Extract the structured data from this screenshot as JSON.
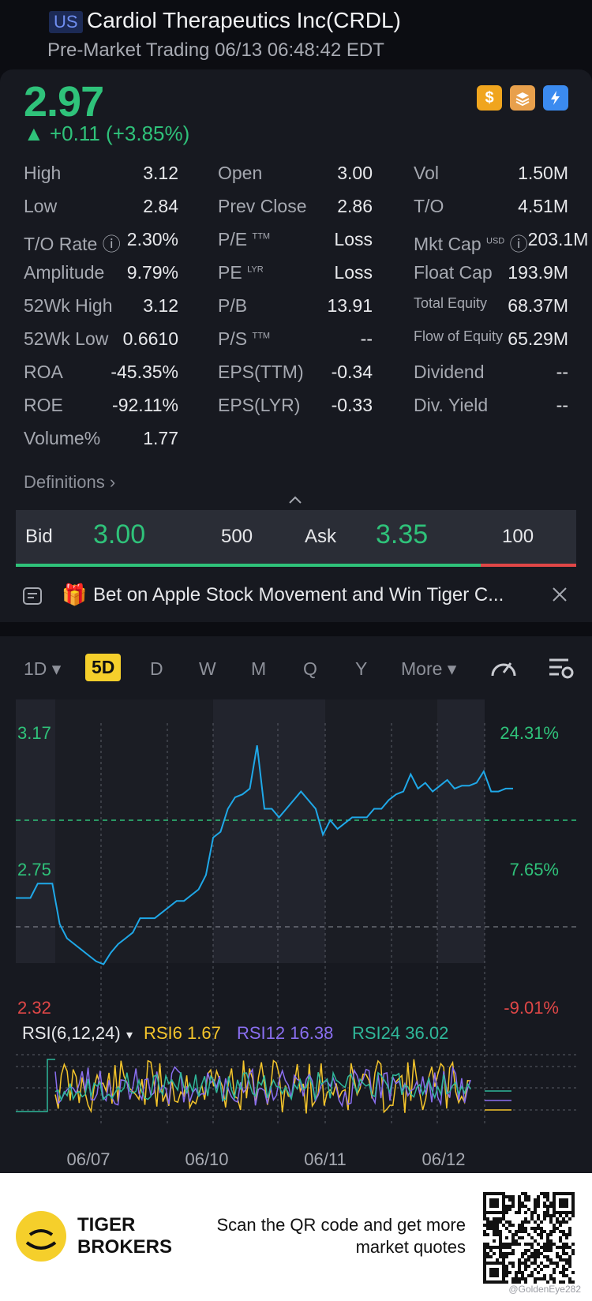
{
  "header": {
    "market_flag": "US",
    "title": "Cardiol Therapeutics Inc(CRDL)",
    "subtitle": "Pre-Market Trading 06/13 06:48:42 EDT"
  },
  "quote": {
    "price": "2.97",
    "change": "+0.11 (+3.85%)",
    "badges": [
      {
        "icon": "dollar-badge-icon",
        "glyph": "$",
        "color": "#f0a51e"
      },
      {
        "icon": "layers-badge-icon",
        "glyph": "≋",
        "color": "#e8a04c"
      },
      {
        "icon": "flash-badge-icon",
        "glyph": "⚡",
        "color": "#3b8bf0"
      }
    ]
  },
  "stats": {
    "rows": [
      [
        {
          "label": "High",
          "value": "3.12"
        },
        {
          "label": "Open",
          "value": "3.00"
        },
        {
          "label": "Vol",
          "value": "1.50M"
        }
      ],
      [
        {
          "label": "Low",
          "value": "2.84"
        },
        {
          "label": "Prev Close",
          "value": "2.86"
        },
        {
          "label": "T/O",
          "value": "4.51M"
        }
      ],
      [
        {
          "label": "T/O Rate",
          "value": "2.30%"
        },
        {
          "label": "P/E",
          "sup": "TTM",
          "value": "Loss"
        },
        {
          "label": "Mkt Cap",
          "sup": "USD",
          "value": "203.1M"
        }
      ],
      [
        {
          "label": "Amplitude",
          "value": "9.79%"
        },
        {
          "label": "PE",
          "sup": "LYR",
          "value": "Loss"
        },
        {
          "label": "Float Cap",
          "value": "193.9M"
        }
      ],
      [
        {
          "label": "52Wk High",
          "value": "3.12"
        },
        {
          "label": "P/B",
          "value": "13.91"
        },
        {
          "label": "Total Equity",
          "value": "68.37M"
        }
      ],
      [
        {
          "label": "52Wk Low",
          "value": "0.6610"
        },
        {
          "label": "P/S",
          "sup": "TTM",
          "value": "--"
        },
        {
          "label": "Flow of Equity",
          "value": "65.29M"
        }
      ],
      [
        {
          "label": "ROA",
          "value": "-45.35%"
        },
        {
          "label": "EPS(TTM)",
          "value": "-0.34"
        },
        {
          "label": "Dividend",
          "value": "--"
        }
      ],
      [
        {
          "label": "ROE",
          "value": "-92.11%"
        },
        {
          "label": "EPS(LYR)",
          "value": "-0.33"
        },
        {
          "label": "Div. Yield",
          "value": "--"
        }
      ],
      [
        {
          "label": "Volume%",
          "value": "1.77"
        }
      ]
    ],
    "definitions_label": "Definitions"
  },
  "bidask": {
    "bid_label": "Bid",
    "bid_price": "3.00",
    "bid_size": "500",
    "ask_label": "Ask",
    "ask_price": "3.35",
    "ask_size": "100",
    "bid_ratio": 0.83,
    "bid_color": "#2fc27a",
    "ask_color": "#e04747"
  },
  "promo": {
    "text": "Bet on Apple Stock Movement and Win Tiger C..."
  },
  "chart_controls": {
    "periods": [
      "1D",
      "5D",
      "D",
      "W",
      "M",
      "Q",
      "Y"
    ],
    "active_period": "5D",
    "more_label": "More"
  },
  "chart_data": {
    "type": "line",
    "y_left_labels": {
      "top": "3.17",
      "mid": "2.75",
      "bottom": "2.32"
    },
    "y_right_labels": {
      "top": "24.31%",
      "mid": "7.65%",
      "bottom": "-9.01%"
    },
    "ylim": [
      2.32,
      3.17
    ],
    "prev_close": 2.86,
    "x_labels": [
      "06/07",
      "06/10",
      "06/11",
      "06/12"
    ],
    "price_series": [
      2.59,
      2.59,
      2.59,
      2.64,
      2.64,
      2.64,
      2.5,
      2.45,
      2.43,
      2.41,
      2.39,
      2.37,
      2.36,
      2.4,
      2.43,
      2.45,
      2.47,
      2.52,
      2.52,
      2.52,
      2.54,
      2.56,
      2.58,
      2.58,
      2.6,
      2.62,
      2.67,
      2.8,
      2.82,
      2.9,
      2.94,
      2.95,
      2.97,
      3.12,
      2.9,
      2.9,
      2.87,
      2.9,
      2.93,
      2.96,
      2.93,
      2.9,
      2.81,
      2.86,
      2.83,
      2.85,
      2.87,
      2.87,
      2.87,
      2.9,
      2.9,
      2.93,
      2.95,
      2.96,
      3.02,
      2.97,
      2.99,
      2.96,
      2.98,
      3.0,
      2.97,
      2.98,
      2.98,
      2.99,
      3.03,
      2.96,
      2.96,
      2.97,
      2.97
    ],
    "rsi": {
      "label": "RSI(6,12,24)",
      "rsi6_label": "RSI6 1.67",
      "rsi12_label": "RSI12 16.38",
      "rsi24_label": "RSI24 36.02",
      "rsi6_color": "#f5c52b",
      "rsi12_color": "#8a6ff0",
      "rsi24_color": "#2fb89a"
    },
    "line_color": "#1fa8e8",
    "up_color": "#2fc27a",
    "down_color": "#e04747"
  },
  "footer": {
    "brand_line1": "TIGER",
    "brand_line2": "BROKERS",
    "text": "Scan the QR code and get more market quotes",
    "watermark": "@GoldenEye282"
  }
}
